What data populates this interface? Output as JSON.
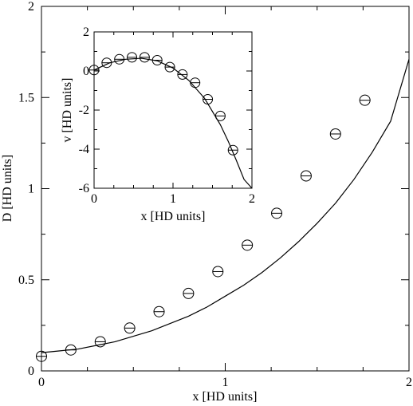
{
  "chart_data": [
    {
      "type": "scatter",
      "xlabel": "x [HD units]",
      "ylabel": "D [HD units]",
      "xlim": [
        0,
        2
      ],
      "ylim": [
        0,
        2
      ],
      "x_ticks": [
        0,
        1,
        2
      ],
      "x_tick_labels": [
        "0",
        "1",
        "2"
      ],
      "y_ticks": [
        0,
        0.5,
        1,
        1.5,
        2
      ],
      "y_tick_labels": [
        "0",
        "0.5",
        "1",
        "1.5",
        "2"
      ],
      "grid": false,
      "series": [
        {
          "kind": "points",
          "marker": "circle-with-errorbar",
          "x": [
            0.0,
            0.16,
            0.32,
            0.48,
            0.64,
            0.8,
            0.96,
            1.12,
            1.28,
            1.44,
            1.6,
            1.76
          ],
          "y": [
            0.08,
            0.115,
            0.16,
            0.235,
            0.325,
            0.425,
            0.545,
            0.69,
            0.865,
            1.07,
            1.3,
            1.485
          ]
        },
        {
          "kind": "line",
          "x": [
            0.0,
            0.1,
            0.2,
            0.3,
            0.4,
            0.5,
            0.6,
            0.7,
            0.8,
            0.9,
            1.0,
            1.1,
            1.2,
            1.3,
            1.4,
            1.5,
            1.6,
            1.7,
            1.8,
            1.9,
            2.0
          ],
          "y": [
            0.1,
            0.11,
            0.12,
            0.14,
            0.16,
            0.19,
            0.22,
            0.26,
            0.3,
            0.35,
            0.41,
            0.47,
            0.54,
            0.62,
            0.71,
            0.81,
            0.92,
            1.05,
            1.2,
            1.37,
            1.71
          ]
        }
      ]
    },
    {
      "type": "scatter",
      "xlabel": "x [HD units]",
      "ylabel": "v [HD units]",
      "xlim": [
        0,
        2
      ],
      "ylim": [
        -6,
        2
      ],
      "x_ticks": [
        0,
        1,
        2
      ],
      "x_tick_labels": [
        "0",
        "1",
        "2"
      ],
      "y_ticks": [
        -6,
        -4,
        -2,
        0,
        2
      ],
      "y_tick_labels": [
        "-6",
        "-4",
        "-2",
        "0",
        "2"
      ],
      "grid": false,
      "series": [
        {
          "kind": "points",
          "marker": "circle-with-errorbar",
          "x": [
            0.0,
            0.16,
            0.32,
            0.48,
            0.64,
            0.8,
            0.96,
            1.12,
            1.28,
            1.44,
            1.6,
            1.76
          ],
          "y": [
            0.05,
            0.42,
            0.6,
            0.7,
            0.7,
            0.55,
            0.2,
            -0.18,
            -0.6,
            -1.45,
            -2.3,
            -4.05
          ]
        },
        {
          "kind": "line",
          "x": [
            0.0,
            0.2,
            0.4,
            0.6,
            0.8,
            1.0,
            1.2,
            1.4,
            1.6,
            1.7,
            1.8,
            1.9,
            2.0
          ],
          "y": [
            0.05,
            0.42,
            0.6,
            0.65,
            0.52,
            0.15,
            -0.48,
            -1.4,
            -2.75,
            -3.6,
            -4.55,
            -5.55,
            -6.0
          ]
        }
      ]
    }
  ]
}
